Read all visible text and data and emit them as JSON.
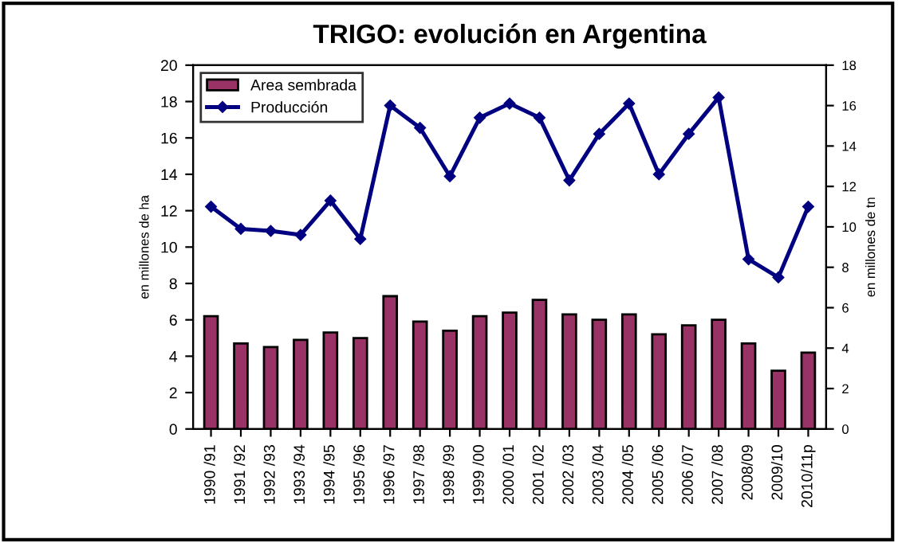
{
  "chart_data": {
    "type": "bar",
    "title": "TRIGO: evolución en Argentina",
    "ylabel": "en millones de ha",
    "y2label": "en millones de tn",
    "categories": [
      "1990 /91",
      "1991 /92",
      "1992 /93",
      "1993 /94",
      "1994 /95",
      "1995 /96",
      "1996 /97",
      "1997 /98",
      "1998 /99",
      "1999 /00",
      "2000 /01",
      "2001 /02",
      "2002 /03",
      "2003 /04",
      "2004 /05",
      "2005 /06",
      "2006 /07",
      "2007 /08",
      "2008/09",
      "2009/10",
      "2010/11p"
    ],
    "series": [
      {
        "name": "Area sembrada",
        "color": "#993366",
        "values": [
          6.2,
          4.7,
          4.5,
          4.9,
          5.3,
          5.0,
          7.3,
          5.9,
          5.4,
          6.2,
          6.4,
          7.1,
          6.3,
          6.0,
          6.3,
          5.2,
          5.7,
          6.0,
          4.7,
          3.2,
          4.2
        ]
      },
      {
        "name": "Producción",
        "type": "line",
        "axis": "y2",
        "color": "#000080",
        "marker": "diamond",
        "values": [
          11.0,
          9.9,
          9.8,
          9.6,
          11.3,
          9.4,
          16.0,
          14.9,
          12.5,
          15.4,
          16.1,
          15.4,
          12.3,
          14.6,
          16.1,
          12.6,
          14.6,
          16.4,
          8.4,
          7.5,
          11.0
        ]
      }
    ],
    "ylim": [
      0,
      20
    ],
    "yticks": [
      0,
      2,
      4,
      6,
      8,
      10,
      12,
      14,
      16,
      18,
      20
    ],
    "y2lim": [
      0,
      18
    ],
    "y2ticks": [
      0,
      2,
      4,
      6,
      8,
      10,
      12,
      14,
      16,
      18
    ],
    "grid": false,
    "legend": "top left"
  }
}
